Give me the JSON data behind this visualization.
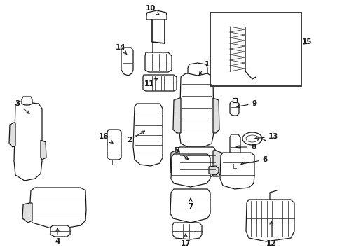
{
  "bg_color": "#ffffff",
  "line_color": "#1a1a1a",
  "figsize": [
    4.89,
    3.6
  ],
  "dpi": 100,
  "lw_main": 0.9,
  "lw_detail": 0.5,
  "fc_light": "#f0f0f0",
  "fc_mid": "#e0e0e0",
  "fc_white": "#ffffff"
}
